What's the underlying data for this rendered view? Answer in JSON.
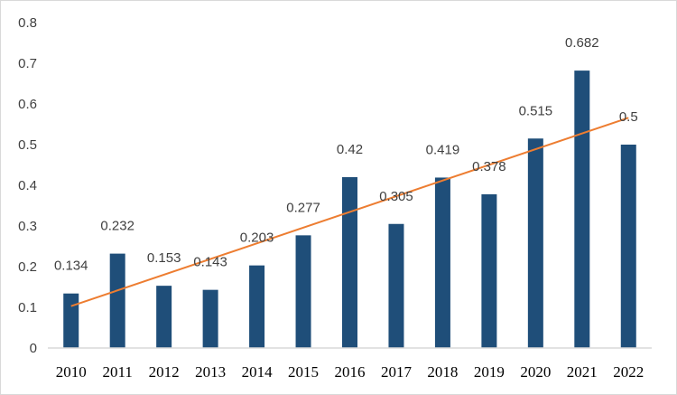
{
  "chart_data": {
    "type": "bar",
    "title": "",
    "xlabel": "",
    "ylabel": "",
    "categories": [
      "2010",
      "2011",
      "2012",
      "2013",
      "2014",
      "2015",
      "2016",
      "2017",
      "2018",
      "2019",
      "2020",
      "2021",
      "2022"
    ],
    "values": [
      0.134,
      0.232,
      0.153,
      0.143,
      0.203,
      0.277,
      0.42,
      0.305,
      0.419,
      0.378,
      0.515,
      0.682,
      0.5
    ],
    "value_labels": [
      "0.134",
      "0.232",
      "0.153",
      "0.143",
      "0.203",
      "0.277",
      "0.42",
      "0.305",
      "0.419",
      "0.378",
      "0.515",
      "0.682",
      "0.5"
    ],
    "ylim": [
      0,
      0.8
    ],
    "yticks": [
      0,
      0.1,
      0.2,
      0.3,
      0.4,
      0.5,
      0.6,
      0.7,
      0.8
    ],
    "ytick_labels": [
      "0",
      "0.1",
      "0.2",
      "0.3",
      "0.4",
      "0.5",
      "0.6",
      "0.7",
      "0.8"
    ],
    "trendline": {
      "type": "linear",
      "start_value": 0.103,
      "end_value": 0.566
    },
    "grid": false,
    "legend": "none",
    "colors": {
      "bar": "#1f4e79",
      "trendline": "#ed7d31",
      "axis": "#d9d9d9"
    }
  }
}
